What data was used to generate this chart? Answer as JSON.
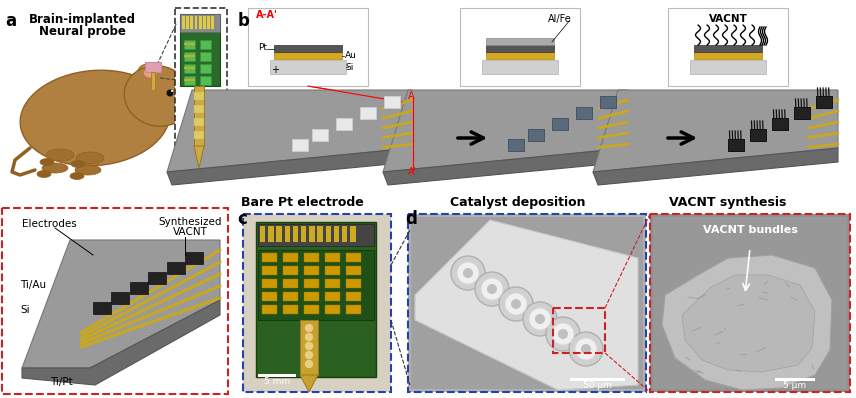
{
  "figure_bg": "#ffffff",
  "panel_label_fontsize": 12,
  "b_labels": [
    "Bare Pt electrode",
    "Catalyst deposition",
    "VACNT synthesis"
  ],
  "probe_gray": "#8a8a8a",
  "probe_gray_dark": "#6a6a6a",
  "probe_gray_side": "#5a5a5a",
  "probe_gold": "#c8a820",
  "probe_gold_dark": "#a88810",
  "electrode_white": "#e8e8e8",
  "electrode_blue": "#5a6a7a",
  "electrode_black": "#222222",
  "red_box_color": "#cc2222",
  "blue_box_color": "#2244aa",
  "mouse_body": "#b08040",
  "mouse_body_dark": "#906020",
  "pcb_green": "#2a6a2a",
  "sem_gray": "#909090",
  "sem_light": "#c8c8c8"
}
